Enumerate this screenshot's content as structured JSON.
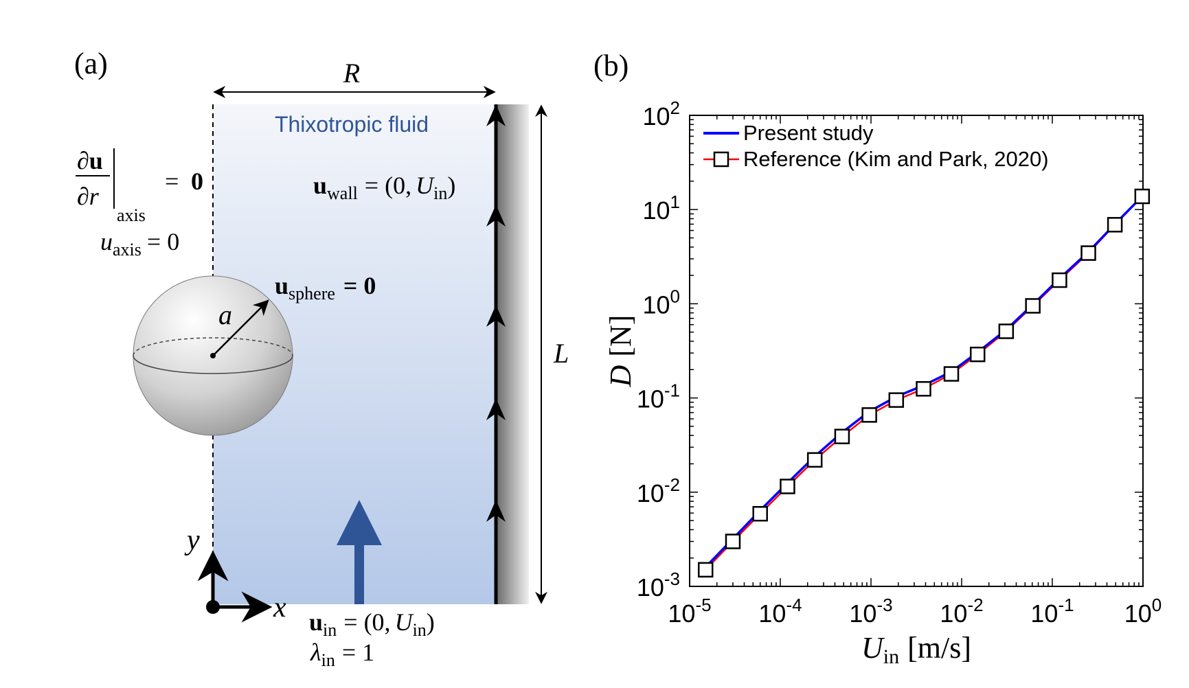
{
  "panel_a": {
    "label": "(a)",
    "dim_R": "R",
    "dim_L": "L",
    "fluid_label": "Thixotropic fluid",
    "axis_bc": {
      "partial": "∂",
      "u_bold": "u",
      "denominator": "∂r",
      "subscript": "axis",
      "equals": "=",
      "zero": "0"
    },
    "axis_u": {
      "symbol": "u",
      "subscript": "axis",
      "rhs": "= 0"
    },
    "sphere_bc": {
      "symbol": "u",
      "subscript": "sphere",
      "rhs": "= 0"
    },
    "wall_bc": {
      "symbol": "u",
      "subscript": "wall",
      "rhs_open": "= (0,",
      "U": "U",
      "U_sub": "in",
      "rhs_close": ")"
    },
    "inlet_bc": {
      "symbol": "u",
      "subscript": "in",
      "rhs_open": "= (0,",
      "U": "U",
      "U_sub": "in",
      "rhs_close": ")"
    },
    "lambda_bc": {
      "symbol": "λ",
      "subscript": "in",
      "rhs": "= 1"
    },
    "radius_label": "a",
    "coord_x": "x",
    "coord_y": "y",
    "colors": {
      "fluid_top": "#f4f6fb",
      "fluid_bottom": "#b4c8e8",
      "inlet_arrow": "#2f5597",
      "fluid_text": "#2f5597"
    }
  },
  "panel_b": {
    "label": "(b)"
  },
  "chart_data": {
    "type": "line",
    "xscale": "log",
    "yscale": "log",
    "xlim": [
      1e-05,
      1
    ],
    "ylim": [
      0.001,
      100
    ],
    "xlabel": {
      "main": "U",
      "sub": "in",
      "unit": "[m/s]"
    },
    "ylabel": {
      "main": "D",
      "unit": "[N]"
    },
    "xticks": [
      {
        "value": 1e-05,
        "base": "10",
        "exp": "-5"
      },
      {
        "value": 0.0001,
        "base": "10",
        "exp": "-4"
      },
      {
        "value": 0.001,
        "base": "10",
        "exp": "-3"
      },
      {
        "value": 0.01,
        "base": "10",
        "exp": "-2"
      },
      {
        "value": 0.1,
        "base": "10",
        "exp": "-1"
      },
      {
        "value": 1,
        "base": "10",
        "exp": "0"
      }
    ],
    "yticks": [
      {
        "value": 0.001,
        "base": "10",
        "exp": "-3"
      },
      {
        "value": 0.01,
        "base": "10",
        "exp": "-2"
      },
      {
        "value": 0.1,
        "base": "10",
        "exp": "-1"
      },
      {
        "value": 1,
        "base": "10",
        "exp": "0"
      },
      {
        "value": 10,
        "base": "10",
        "exp": "1"
      },
      {
        "value": 100,
        "base": "10",
        "exp": "2"
      }
    ],
    "legend_position": "top-left",
    "series": [
      {
        "name": "Present study",
        "color": "#0000ff",
        "marker": "none",
        "x": [
          1.5e-05,
          3e-05,
          6e-05,
          0.00012,
          0.00024,
          0.00048,
          0.00096,
          0.0019,
          0.0038,
          0.0077,
          0.015,
          0.031,
          0.061,
          0.12,
          0.25,
          0.49,
          0.98
        ],
        "y": [
          0.0016,
          0.0032,
          0.0064,
          0.0125,
          0.024,
          0.043,
          0.072,
          0.103,
          0.136,
          0.19,
          0.305,
          0.53,
          0.98,
          1.85,
          3.55,
          7.0,
          13.8
        ]
      },
      {
        "name": "Reference (Kim and Park, 2020)",
        "color": "#ff0000",
        "marker": "square",
        "x": [
          1.5e-05,
          3e-05,
          6e-05,
          0.00012,
          0.00024,
          0.00048,
          0.00096,
          0.0019,
          0.0038,
          0.0077,
          0.015,
          0.031,
          0.061,
          0.12,
          0.25,
          0.49,
          0.98
        ],
        "y": [
          0.0015,
          0.003,
          0.0059,
          0.0115,
          0.022,
          0.039,
          0.066,
          0.095,
          0.125,
          0.18,
          0.29,
          0.51,
          0.95,
          1.78,
          3.45,
          6.9,
          13.8
        ]
      }
    ]
  }
}
